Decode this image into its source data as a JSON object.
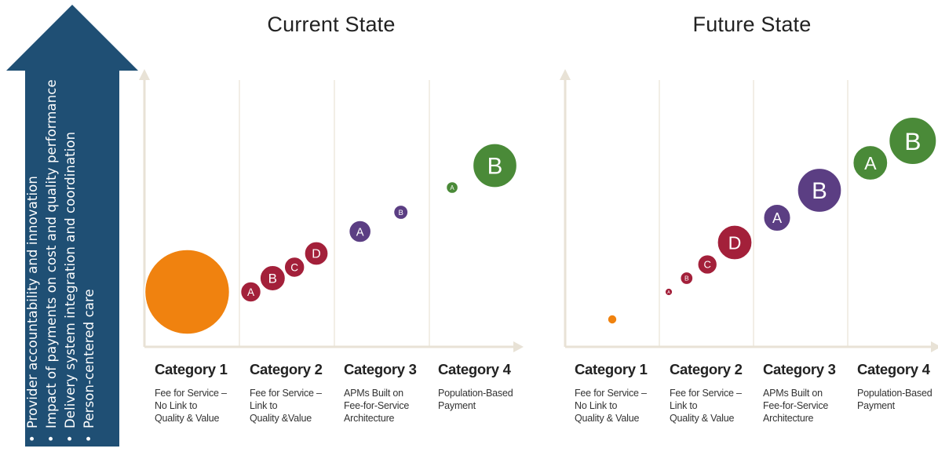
{
  "arrow": {
    "color": "#1f4f74",
    "items": [
      "Provider accountability and innovation",
      "Impact of payments on cost and quality performance",
      "Delivery system integration and coordination",
      "Person-centered care"
    ]
  },
  "colors": {
    "category_1": "#f0820f",
    "category_2": "#a3203a",
    "category_3": "#5b3e83",
    "category_4": "#4a8a38",
    "axis": "#e8e2d6"
  },
  "categories": [
    {
      "name": "Category 1",
      "desc": [
        "Fee for Service –",
        "No Link to",
        "Quality & Value"
      ]
    },
    {
      "name": "Category 2",
      "desc": [
        "Fee for Service –",
        "Link to",
        "Quality &Value"
      ]
    },
    {
      "name": "Category 3",
      "desc": [
        "APMs Built on",
        "Fee-for-Service",
        "Architecture"
      ]
    },
    {
      "name": "Category 4",
      "desc": [
        "Population-Based",
        "Payment"
      ]
    }
  ],
  "categories_future": [
    {
      "name": "Category 1",
      "desc": [
        "Fee for Service –",
        "No Link to",
        "Quality & Value"
      ]
    },
    {
      "name": "Category 2",
      "desc": [
        "Fee for Service –",
        "Link to",
        "Quality & Value"
      ]
    },
    {
      "name": "Category 3",
      "desc": [
        "APMs Built on",
        "Fee-for-Service",
        "Architecture"
      ]
    },
    {
      "name": "Category 4",
      "desc": [
        "Population-Based",
        "Payment"
      ]
    }
  ],
  "chart_data": [
    {
      "type": "scatter",
      "title": "Current State",
      "x_categories": [
        "Category 1",
        "Category 2",
        "Category 3",
        "Category 4"
      ],
      "bubble_size_scale": "relative (1 = largest circle)",
      "points": [
        {
          "category": 1,
          "label": "",
          "x": 0.45,
          "level": 0.2,
          "size": 1.0
        },
        {
          "category": 2,
          "label": "A",
          "x": 0.12,
          "level": 0.2,
          "size": 0.24
        },
        {
          "category": 2,
          "label": "B",
          "x": 0.35,
          "level": 0.25,
          "size": 0.3
        },
        {
          "category": 2,
          "label": "C",
          "x": 0.58,
          "level": 0.29,
          "size": 0.24
        },
        {
          "category": 2,
          "label": "D",
          "x": 0.81,
          "level": 0.34,
          "size": 0.28
        },
        {
          "category": 3,
          "label": "A",
          "x": 0.27,
          "level": 0.42,
          "size": 0.26
        },
        {
          "category": 3,
          "label": "B",
          "x": 0.7,
          "level": 0.49,
          "size": 0.17
        },
        {
          "category": 4,
          "label": "A",
          "x": 0.24,
          "level": 0.58,
          "size": 0.14
        },
        {
          "category": 4,
          "label": "B",
          "x": 0.69,
          "level": 0.66,
          "size": 0.52
        }
      ]
    },
    {
      "type": "scatter",
      "title": "Future State",
      "x_categories": [
        "Category 1",
        "Category 2",
        "Category 3",
        "Category 4"
      ],
      "bubble_size_scale": "relative (1 = largest circle)",
      "points": [
        {
          "category": 1,
          "label": "",
          "x": 0.5,
          "level": 0.1,
          "size": 0.11
        },
        {
          "category": 2,
          "label": "A",
          "x": 0.1,
          "level": 0.2,
          "size": 0.09
        },
        {
          "category": 2,
          "label": "B",
          "x": 0.29,
          "level": 0.25,
          "size": 0.15
        },
        {
          "category": 2,
          "label": "C",
          "x": 0.51,
          "level": 0.3,
          "size": 0.23
        },
        {
          "category": 2,
          "label": "D",
          "x": 0.8,
          "level": 0.38,
          "size": 0.41
        },
        {
          "category": 3,
          "label": "A",
          "x": 0.25,
          "level": 0.47,
          "size": 0.32
        },
        {
          "category": 3,
          "label": "B",
          "x": 0.7,
          "level": 0.57,
          "size": 0.52
        },
        {
          "category": 4,
          "label": "A",
          "x": 0.24,
          "level": 0.67,
          "size": 0.41
        },
        {
          "category": 4,
          "label": "B",
          "x": 0.69,
          "level": 0.75,
          "size": 0.56
        }
      ]
    }
  ]
}
